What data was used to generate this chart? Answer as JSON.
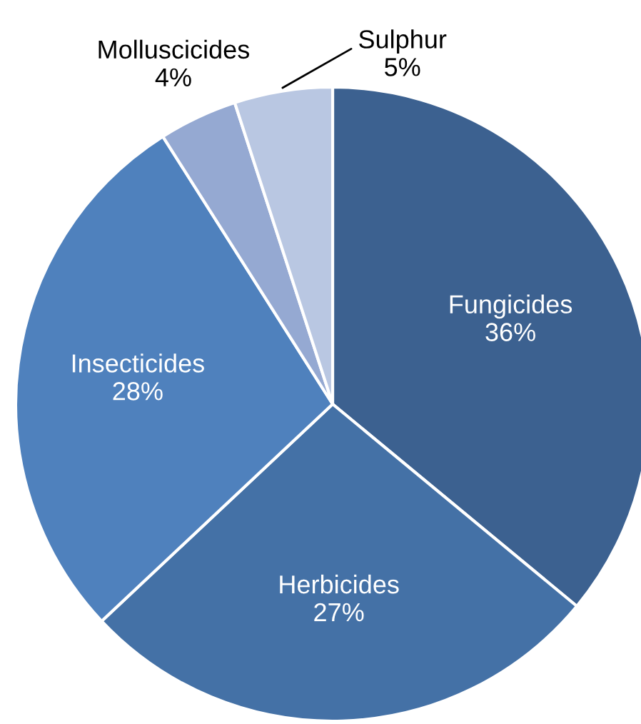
{
  "chart_data": {
    "type": "pie",
    "categories": [
      "Fungicides",
      "Herbicides",
      "Insecticides",
      "Molluscicides",
      "Sulphur"
    ],
    "values": [
      36,
      27,
      28,
      4,
      5
    ],
    "colors": [
      "#3c6190",
      "#4471a6",
      "#4f81bd",
      "#95a9d2",
      "#b9c7e2"
    ],
    "value_labels": [
      "36%",
      "27%",
      "28%",
      "4%",
      "5%"
    ],
    "legend": false
  }
}
